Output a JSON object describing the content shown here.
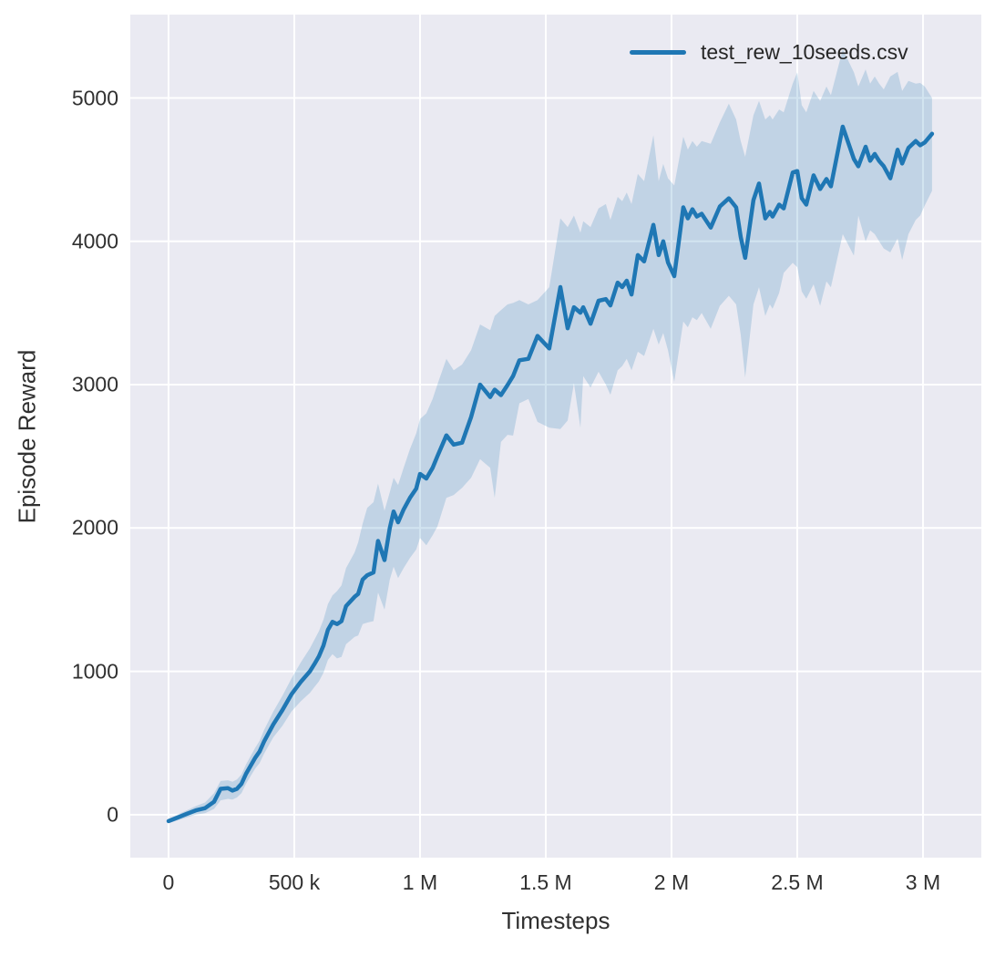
{
  "chart_data": {
    "type": "line",
    "title": "",
    "xlabel": "Timesteps",
    "ylabel": "Episode Reward",
    "grid": true,
    "legend_position": "upper right",
    "style": "seaborn-darkgrid",
    "colors": {
      "plot_background": "#eaeaf2",
      "gridline": "#ffffff",
      "line": "#1f77b4",
      "band": "rgba(31,119,180,0.2)",
      "tick_text": "#303030",
      "legend_text": "#262626"
    },
    "xlim": [
      -152000,
      3232000
    ],
    "ylim": [
      -300,
      5582
    ],
    "x_ticks": {
      "values": [
        0,
        500000,
        1000000,
        1500000,
        2000000,
        2500000,
        3000000
      ],
      "labels": [
        "0",
        "500 k",
        "1 M",
        "1.5 M",
        "2 M",
        "2.5 M",
        "3 M"
      ]
    },
    "y_ticks": {
      "values": [
        0,
        1000,
        2000,
        3000,
        4000,
        5000
      ],
      "labels": [
        "0",
        "1000",
        "2000",
        "3000",
        "4000",
        "5000"
      ]
    },
    "series": [
      {
        "name": "test_rew_10seeds.csv",
        "color": "#1f77b4",
        "line_width": 4.5,
        "x": [
          0,
          36000,
          72000,
          109000,
          145000,
          181000,
          207000,
          236000,
          254000,
          272000,
          290000,
          308000,
          344000,
          362000,
          380000,
          417000,
          453000,
          489000,
          525000,
          562000,
          580000,
          598000,
          616000,
          634000,
          652000,
          670000,
          688000,
          706000,
          740000,
          754000,
          772000,
          790000,
          815000,
          833000,
          859000,
          880000,
          895000,
          913000,
          935000,
          960000,
          985000,
          1000000,
          1025000,
          1050000,
          1069000,
          1105000,
          1134000,
          1167000,
          1203000,
          1239000,
          1279000,
          1297000,
          1322000,
          1348000,
          1370000,
          1395000,
          1431000,
          1467000,
          1514000,
          1558000,
          1587000,
          1612000,
          1638000,
          1649000,
          1678000,
          1710000,
          1739000,
          1757000,
          1786000,
          1804000,
          1822000,
          1841000,
          1866000,
          1891000,
          1928000,
          1949000,
          1967000,
          1986000,
          2011000,
          2047000,
          2065000,
          2083000,
          2101000,
          2120000,
          2156000,
          2192000,
          2228000,
          2257000,
          2275000,
          2293000,
          2326000,
          2348000,
          2373000,
          2391000,
          2402000,
          2428000,
          2446000,
          2482000,
          2500000,
          2518000,
          2536000,
          2565000,
          2591000,
          2616000,
          2634000,
          2681000,
          2725000,
          2743000,
          2772000,
          2790000,
          2808000,
          2826000,
          2844000,
          2870000,
          2899000,
          2917000,
          2942000,
          2971000,
          2989000,
          3007000,
          3036000
        ],
        "mean": [
          -45,
          -20,
          5,
          30,
          45,
          90,
          180,
          185,
          168,
          180,
          215,
          285,
          395,
          440,
          510,
          630,
          730,
          840,
          925,
          1000,
          1050,
          1105,
          1180,
          1290,
          1345,
          1330,
          1350,
          1455,
          1520,
          1540,
          1640,
          1670,
          1690,
          1910,
          1776,
          2000,
          2115,
          2040,
          2130,
          2210,
          2275,
          2377,
          2345,
          2420,
          2500,
          2646,
          2582,
          2595,
          2774,
          3000,
          2914,
          2965,
          2927,
          2997,
          3060,
          3170,
          3180,
          3340,
          3253,
          3681,
          3393,
          3540,
          3502,
          3540,
          3425,
          3585,
          3597,
          3553,
          3712,
          3681,
          3725,
          3629,
          3904,
          3860,
          4115,
          3904,
          4000,
          3853,
          3757,
          4237,
          4160,
          4224,
          4173,
          4192,
          4096,
          4243,
          4300,
          4237,
          4032,
          3885,
          4288,
          4403,
          4160,
          4205,
          4173,
          4256,
          4230,
          4480,
          4490,
          4301,
          4256,
          4460,
          4365,
          4435,
          4384,
          4800,
          4575,
          4524,
          4660,
          4562,
          4610,
          4560,
          4524,
          4440,
          4639,
          4543,
          4652,
          4700,
          4670,
          4690,
          4750
        ],
        "band_low": [
          -60,
          -40,
          -20,
          0,
          10,
          40,
          100,
          110,
          105,
          120,
          150,
          215,
          320,
          360,
          425,
          540,
          620,
          720,
          790,
          850,
          890,
          930,
          990,
          1080,
          1120,
          1090,
          1100,
          1190,
          1240,
          1250,
          1330,
          1340,
          1350,
          1550,
          1430,
          1640,
          1730,
          1650,
          1720,
          1790,
          1850,
          1930,
          1880,
          1950,
          2010,
          2210,
          2230,
          2280,
          2350,
          2480,
          2420,
          2210,
          2600,
          2650,
          2645,
          2870,
          2900,
          2740,
          2700,
          2690,
          2750,
          3010,
          2700,
          3060,
          2980,
          3090,
          3000,
          2930,
          3100,
          3130,
          3180,
          3100,
          3230,
          3200,
          3390,
          3280,
          3360,
          3240,
          3020,
          3440,
          3400,
          3470,
          3450,
          3500,
          3390,
          3550,
          3620,
          3560,
          3350,
          3050,
          3560,
          3680,
          3480,
          3560,
          3530,
          3640,
          3780,
          3850,
          3820,
          3650,
          3600,
          3700,
          3550,
          3720,
          3680,
          4050,
          3900,
          4180,
          4000,
          4077,
          4050,
          4000,
          3950,
          3923,
          4020,
          3870,
          4050,
          4150,
          4180,
          4250,
          4352
        ],
        "band_high": [
          -30,
          0,
          30,
          60,
          85,
          150,
          235,
          240,
          230,
          245,
          280,
          350,
          465,
          515,
          590,
          720,
          830,
          950,
          1060,
          1160,
          1220,
          1280,
          1360,
          1470,
          1530,
          1560,
          1600,
          1720,
          1830,
          1900,
          2030,
          2140,
          2180,
          2310,
          2120,
          2250,
          2350,
          2300,
          2420,
          2550,
          2660,
          2760,
          2800,
          2900,
          3000,
          3180,
          3100,
          3140,
          3240,
          3420,
          3380,
          3480,
          3520,
          3560,
          3570,
          3590,
          3560,
          3590,
          3680,
          4160,
          4100,
          4180,
          4060,
          4140,
          4100,
          4230,
          4260,
          4150,
          4310,
          4280,
          4340,
          4260,
          4470,
          4420,
          4740,
          4420,
          4540,
          4440,
          4390,
          4730,
          4640,
          4700,
          4660,
          4700,
          4680,
          4830,
          4960,
          4850,
          4700,
          4590,
          4880,
          4980,
          4850,
          4880,
          4850,
          4920,
          4900,
          5100,
          5180,
          4950,
          4900,
          5050,
          4980,
          5080,
          5020,
          5340,
          5180,
          5080,
          5200,
          5100,
          5150,
          5100,
          5060,
          5150,
          5182,
          5050,
          5120,
          5100,
          5105,
          5080,
          5000
        ]
      }
    ]
  }
}
